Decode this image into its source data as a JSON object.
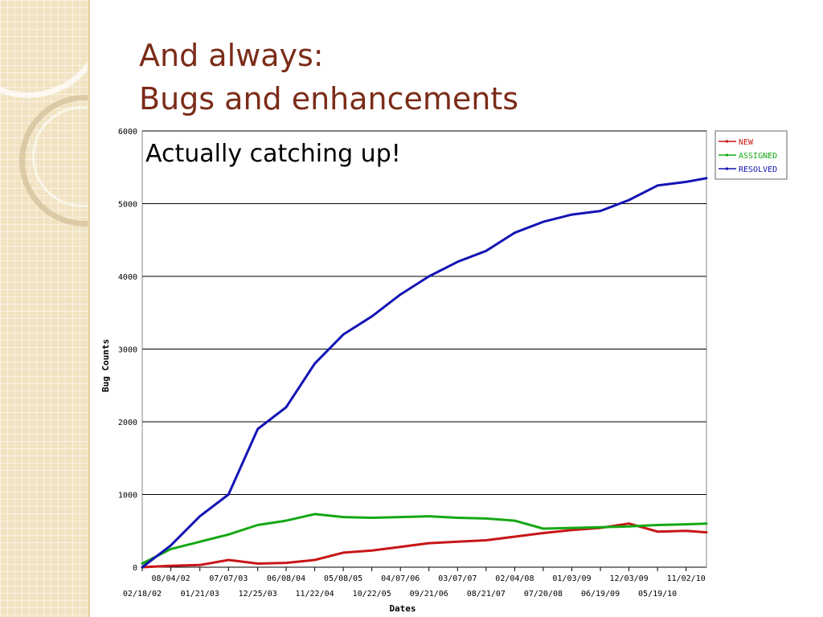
{
  "slide": {
    "title_line1": "And always:",
    "title_line2": "Bugs and enhancements",
    "subtitle": "Actually catching up!"
  },
  "colors": {
    "title": "#7b2c18",
    "new": "#c81616",
    "assigned": "#14a814",
    "resolved": "#1414b4",
    "sidebar": "#f1e3c2"
  },
  "chart_data": {
    "type": "line",
    "xlabel": "Dates",
    "ylabel": "Bug Counts",
    "ylim": [
      0,
      6000
    ],
    "yticks": [
      0,
      1000,
      2000,
      3000,
      4000,
      5000,
      6000
    ],
    "xlim": [
      "02/18/02",
      "03/01/11"
    ],
    "xtick_labels": [
      "02/18/02",
      "08/04/02",
      "01/21/03",
      "07/07/03",
      "12/25/03",
      "06/08/04",
      "11/22/04",
      "05/08/05",
      "10/22/05",
      "04/07/06",
      "09/21/06",
      "03/07/07",
      "08/21/07",
      "02/04/08",
      "07/20/08",
      "01/03/09",
      "06/19/09",
      "12/03/09",
      "05/19/10",
      "11/02/10"
    ],
    "grid": true,
    "legend": "top-right",
    "series": [
      {
        "name": "NEW",
        "points": [
          [
            "02/18/02",
            0
          ],
          [
            "08/04/02",
            20
          ],
          [
            "01/21/03",
            30
          ],
          [
            "07/07/03",
            100
          ],
          [
            "12/25/03",
            50
          ],
          [
            "06/08/04",
            60
          ],
          [
            "11/22/04",
            100
          ],
          [
            "05/08/05",
            200
          ],
          [
            "10/22/05",
            230
          ],
          [
            "04/07/06",
            280
          ],
          [
            "09/21/06",
            330
          ],
          [
            "03/07/07",
            350
          ],
          [
            "08/21/07",
            370
          ],
          [
            "02/04/08",
            420
          ],
          [
            "07/20/08",
            470
          ],
          [
            "01/03/09",
            510
          ],
          [
            "06/19/09",
            540
          ],
          [
            "12/03/09",
            600
          ],
          [
            "05/19/10",
            490
          ],
          [
            "11/02/10",
            500
          ],
          [
            "03/01/11",
            480
          ]
        ]
      },
      {
        "name": "ASSIGNED",
        "points": [
          [
            "02/18/02",
            50
          ],
          [
            "08/04/02",
            250
          ],
          [
            "01/21/03",
            350
          ],
          [
            "07/07/03",
            450
          ],
          [
            "12/25/03",
            580
          ],
          [
            "06/08/04",
            640
          ],
          [
            "11/22/04",
            730
          ],
          [
            "05/08/05",
            690
          ],
          [
            "10/22/05",
            680
          ],
          [
            "04/07/06",
            690
          ],
          [
            "09/21/06",
            700
          ],
          [
            "03/07/07",
            680
          ],
          [
            "08/21/07",
            670
          ],
          [
            "02/04/08",
            640
          ],
          [
            "07/20/08",
            530
          ],
          [
            "01/03/09",
            540
          ],
          [
            "06/19/09",
            550
          ],
          [
            "12/03/09",
            560
          ],
          [
            "05/19/10",
            580
          ],
          [
            "11/02/10",
            590
          ],
          [
            "03/01/11",
            600
          ]
        ]
      },
      {
        "name": "RESOLVED",
        "points": [
          [
            "02/18/02",
            0
          ],
          [
            "08/04/02",
            300
          ],
          [
            "01/21/03",
            700
          ],
          [
            "07/07/03",
            1000
          ],
          [
            "12/25/03",
            1900
          ],
          [
            "06/08/04",
            2200
          ],
          [
            "11/22/04",
            2800
          ],
          [
            "05/08/05",
            3200
          ],
          [
            "10/22/05",
            3450
          ],
          [
            "04/07/06",
            3750
          ],
          [
            "09/21/06",
            4000
          ],
          [
            "03/07/07",
            4200
          ],
          [
            "08/21/07",
            4350
          ],
          [
            "02/04/08",
            4600
          ],
          [
            "07/20/08",
            4750
          ],
          [
            "01/03/09",
            4850
          ],
          [
            "06/19/09",
            4900
          ],
          [
            "12/03/09",
            5050
          ],
          [
            "05/19/10",
            5250
          ],
          [
            "11/02/10",
            5300
          ],
          [
            "03/01/11",
            5350
          ]
        ]
      }
    ]
  }
}
